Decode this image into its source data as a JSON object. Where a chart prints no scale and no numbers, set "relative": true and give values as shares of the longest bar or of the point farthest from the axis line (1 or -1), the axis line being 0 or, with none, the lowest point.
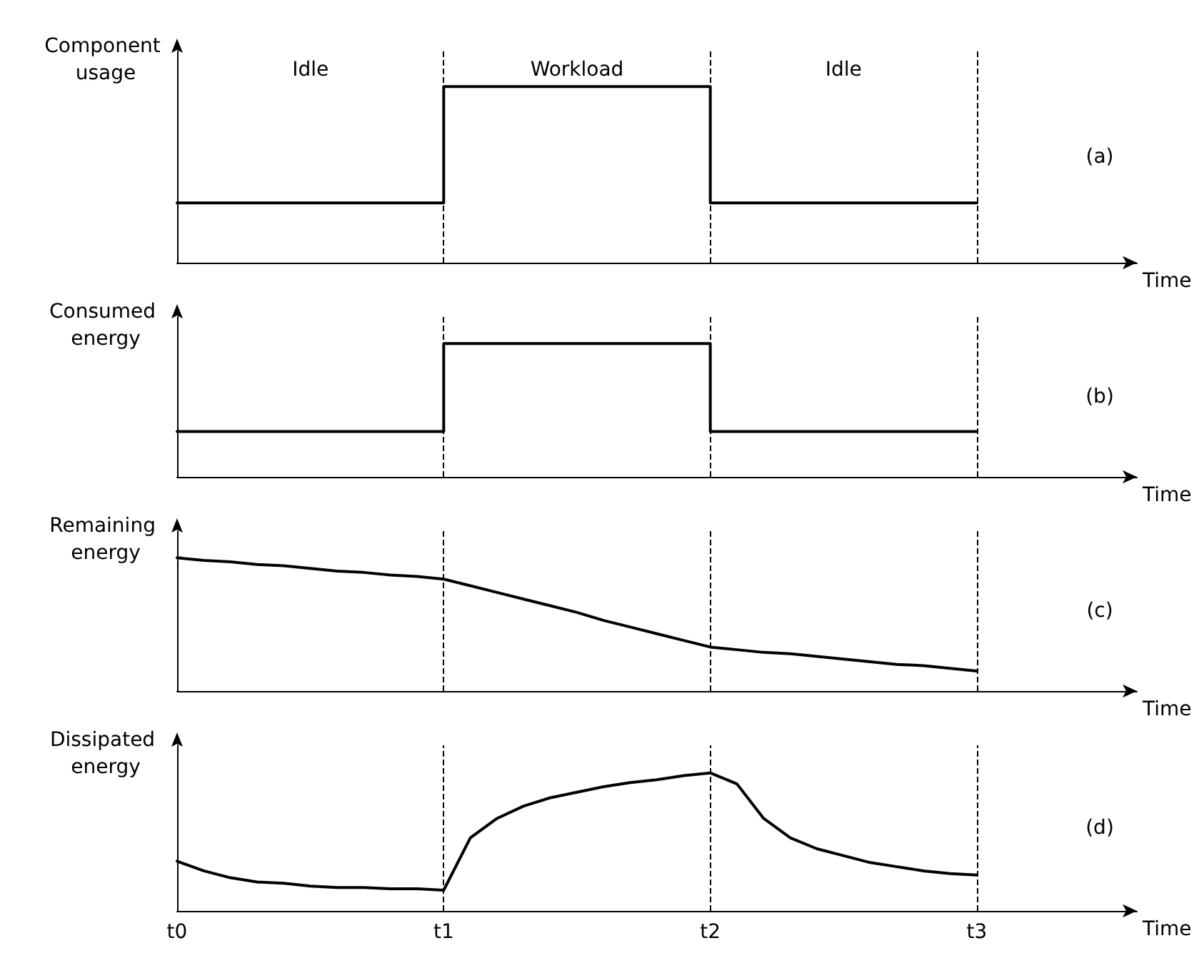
{
  "chart_data": [
    {
      "type": "step",
      "ylabel": "Component usage",
      "xlabel": "Time",
      "relative": true,
      "tick_labels": false,
      "marker": "none",
      "line_style": "solid",
      "categories": [
        "t0",
        null,
        null,
        null,
        null,
        null,
        null,
        null,
        null,
        null,
        "t1",
        null,
        null,
        null,
        null,
        null,
        null,
        null,
        null,
        null,
        "t2",
        null,
        null,
        null,
        null,
        null,
        null,
        null,
        null,
        null,
        "t3",
        null,
        null,
        null,
        null,
        null,
        null
      ],
      "series": [
        {
          "color": "#000000",
          "values": [
            0.34,
            0.34,
            0.34,
            0.34,
            0.34,
            0.34,
            0.34,
            0.34,
            0.34,
            0.34,
            0.34,
            1,
            1,
            1,
            1,
            1,
            1,
            1,
            1,
            1,
            1,
            0.34,
            0.34,
            0.34,
            0.34,
            0.34,
            0.34,
            0.34,
            0.34,
            0.34,
            0.34,
            null,
            null,
            null,
            null,
            null,
            null
          ]
        }
      ],
      "ref_lines": [
        {
          "axis": "x",
          "value": "t1",
          "line_style": "dashed",
          "color": "#000000"
        },
        {
          "axis": "x",
          "value": "t2",
          "line_style": "dashed",
          "color": "#000000"
        },
        {
          "axis": "x",
          "value": "t3",
          "line_style": "dashed",
          "color": "#000000"
        }
      ],
      "annotations": [
        "Idle",
        "Workload",
        "Idle",
        "(a)"
      ]
    },
    {
      "type": "step",
      "ylabel": "Consumed energy",
      "xlabel": "Time",
      "relative": true,
      "tick_labels": false,
      "marker": "none",
      "line_style": "solid",
      "categories": [
        "t0",
        null,
        null,
        null,
        null,
        null,
        null,
        null,
        null,
        null,
        "t1",
        null,
        null,
        null,
        null,
        null,
        null,
        null,
        null,
        null,
        "t2",
        null,
        null,
        null,
        null,
        null,
        null,
        null,
        null,
        null,
        "t3",
        null,
        null,
        null,
        null,
        null,
        null
      ],
      "series": [
        {
          "color": "#000000",
          "values": [
            0.34,
            0.34,
            0.34,
            0.34,
            0.34,
            0.34,
            0.34,
            0.34,
            0.34,
            0.34,
            0.34,
            1,
            1,
            1,
            1,
            1,
            1,
            1,
            1,
            1,
            1,
            0.34,
            0.34,
            0.34,
            0.34,
            0.34,
            0.34,
            0.34,
            0.34,
            0.34,
            0.34,
            null,
            null,
            null,
            null,
            null,
            null
          ]
        }
      ],
      "ref_lines": [
        {
          "axis": "x",
          "value": "t1",
          "line_style": "dashed",
          "color": "#000000"
        },
        {
          "axis": "x",
          "value": "t2",
          "line_style": "dashed",
          "color": "#000000"
        },
        {
          "axis": "x",
          "value": "t3",
          "line_style": "dashed",
          "color": "#000000"
        }
      ],
      "annotations": [
        "(b)"
      ]
    },
    {
      "type": "line",
      "ylabel": "Remaining energy",
      "xlabel": "Time",
      "relative": true,
      "tick_labels": false,
      "marker": "none",
      "line_style": "solid",
      "categories": [
        "t0",
        null,
        null,
        null,
        null,
        null,
        null,
        null,
        null,
        null,
        "t1",
        null,
        null,
        null,
        null,
        null,
        null,
        null,
        null,
        null,
        "t2",
        null,
        null,
        null,
        null,
        null,
        null,
        null,
        null,
        null,
        "t3",
        null,
        null,
        null,
        null,
        null,
        null
      ],
      "series": [
        {
          "color": "#000000",
          "values": [
            1,
            0.98,
            0.97,
            0.95,
            0.94,
            0.92,
            0.9,
            0.89,
            0.87,
            0.86,
            0.84,
            0.79,
            0.74,
            0.69,
            0.64,
            0.59,
            0.53,
            0.48,
            0.43,
            0.38,
            0.33,
            0.31,
            0.29,
            0.28,
            0.26,
            0.24,
            0.22,
            0.2,
            0.19,
            0.17,
            0.15,
            null,
            null,
            null,
            null,
            null,
            null
          ]
        }
      ],
      "ref_lines": [
        {
          "axis": "x",
          "value": "t1",
          "line_style": "dashed",
          "color": "#000000"
        },
        {
          "axis": "x",
          "value": "t2",
          "line_style": "dashed",
          "color": "#000000"
        },
        {
          "axis": "x",
          "value": "t3",
          "line_style": "dashed",
          "color": "#000000"
        }
      ],
      "annotations": [
        "(c)"
      ]
    },
    {
      "type": "line",
      "ylabel": "Dissipated energy",
      "xlabel": "Time",
      "relative": true,
      "tick_labels": "x",
      "marker": "none",
      "line_style": "solid",
      "categories": [
        "t0",
        null,
        null,
        null,
        null,
        null,
        null,
        null,
        null,
        null,
        "t1",
        null,
        null,
        null,
        null,
        null,
        null,
        null,
        null,
        null,
        "t2",
        null,
        null,
        null,
        null,
        null,
        null,
        null,
        null,
        null,
        "t3",
        null,
        null,
        null,
        null,
        null,
        null
      ],
      "series": [
        {
          "color": "#000000",
          "values": [
            0.36,
            0.29,
            0.24,
            0.21,
            0.2,
            0.18,
            0.17,
            0.17,
            0.16,
            0.16,
            0.15,
            0.53,
            0.67,
            0.76,
            0.82,
            0.86,
            0.9,
            0.93,
            0.95,
            0.98,
            1,
            0.92,
            0.67,
            0.53,
            0.45,
            0.4,
            0.35,
            0.32,
            0.29,
            0.27,
            0.26,
            null,
            null,
            null,
            null,
            null,
            null
          ]
        }
      ],
      "ref_lines": [
        {
          "axis": "x",
          "value": "t1",
          "line_style": "dashed",
          "color": "#000000"
        },
        {
          "axis": "x",
          "value": "t2",
          "line_style": "dashed",
          "color": "#000000"
        },
        {
          "axis": "x",
          "value": "t3",
          "line_style": "dashed",
          "color": "#000000"
        }
      ],
      "annotations": [
        "(d)"
      ]
    }
  ]
}
